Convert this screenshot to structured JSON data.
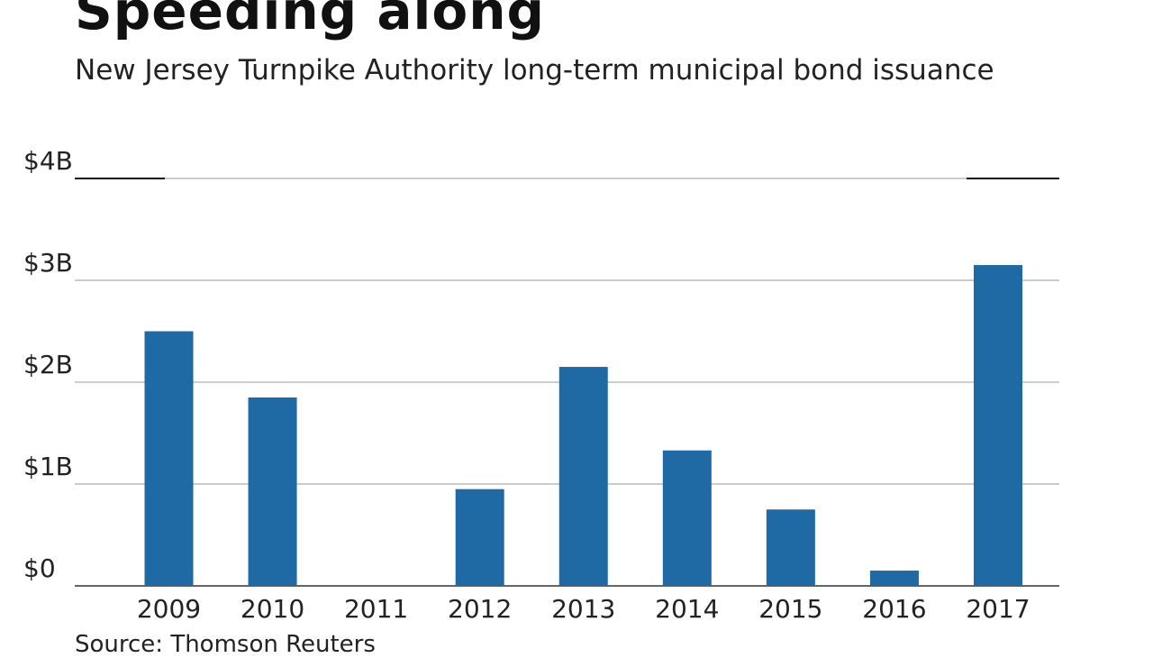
{
  "chart_data": {
    "type": "bar",
    "title": "Speeding along",
    "subtitle": "New Jersey Turnpike Authority long-term municipal bond issuance",
    "source": "Source: Thomson Reuters",
    "categories": [
      "2009",
      "2010",
      "2011",
      "2012",
      "2013",
      "2014",
      "2015",
      "2016",
      "2017"
    ],
    "values": [
      2.5,
      1.85,
      0,
      0.95,
      2.15,
      1.33,
      0.75,
      0.15,
      3.15
    ],
    "unit": "billion USD",
    "yticks": [
      {
        "value": 0,
        "label": "$0"
      },
      {
        "value": 1,
        "label": "$1B"
      },
      {
        "value": 2,
        "label": "$2B"
      },
      {
        "value": 3,
        "label": "$3B"
      },
      {
        "value": 4,
        "label": "$4B"
      }
    ],
    "ylim": [
      0,
      4
    ],
    "xlabel": "",
    "ylabel": "",
    "grid": true,
    "colors": {
      "bar": "#1f6aa5",
      "grid": "#999999",
      "axis": "#333333"
    }
  }
}
